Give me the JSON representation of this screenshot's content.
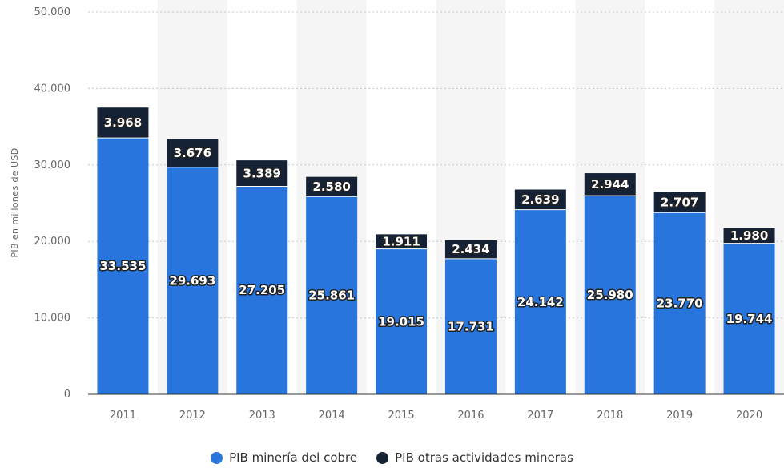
{
  "chart_data": {
    "type": "bar",
    "stacked": true,
    "categories": [
      "2011",
      "2012",
      "2013",
      "2014",
      "2015",
      "2016",
      "2017",
      "2018",
      "2019",
      "2020"
    ],
    "series": [
      {
        "name": "PIB minería del cobre",
        "color": "#2876dd",
        "values": [
          33535,
          29693,
          27205,
          25861,
          19015,
          17731,
          24142,
          25980,
          23770,
          19744
        ],
        "labels": [
          "33.535",
          "29.693",
          "27.205",
          "25.861",
          "19.015",
          "17.731",
          "24.142",
          "25.980",
          "23.770",
          "19.744"
        ]
      },
      {
        "name": "PIB otras actividades mineras",
        "color": "#152235",
        "values": [
          3968,
          3676,
          3389,
          2580,
          1911,
          2434,
          2639,
          2944,
          2707,
          1980
        ],
        "labels": [
          "3.968",
          "3.676",
          "3.389",
          "2.580",
          "1.911",
          "2.434",
          "2.639",
          "2.944",
          "2.707",
          "1.980"
        ]
      }
    ],
    "ylabel": "PIB en millones de USD",
    "xlabel": "",
    "ylim": [
      0,
      50000
    ],
    "yticks": [
      0,
      10000,
      20000,
      30000,
      40000,
      50000
    ],
    "ytick_labels": [
      "0",
      "10.000",
      "20.000",
      "30.000",
      "40.000",
      "50.000"
    ],
    "grid": true,
    "legend": "bottom-center"
  }
}
